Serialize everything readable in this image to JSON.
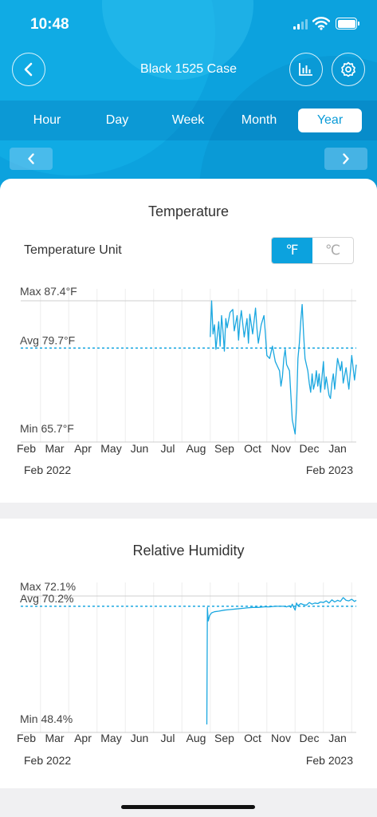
{
  "status_bar": {
    "time": "10:48"
  },
  "header": {
    "title": "Black 1525 Case"
  },
  "tabs": [
    {
      "label": "Hour",
      "active": false
    },
    {
      "label": "Day",
      "active": false
    },
    {
      "label": "Week",
      "active": false
    },
    {
      "label": "Month",
      "active": false
    },
    {
      "label": "Year",
      "active": true
    }
  ],
  "temperature": {
    "title": "Temperature",
    "unit_label": "Temperature Unit",
    "unit_fahrenheit": "℉",
    "unit_celsius": "℃",
    "selected_unit": "F",
    "year_start": "Feb 2022",
    "year_end": "Feb 2023"
  },
  "humidity": {
    "title": "Relative Humidity",
    "year_start": "Feb 2022",
    "year_end": "Feb 2023"
  },
  "colors": {
    "accent": "#0ca2de",
    "line": "#1aa7e0"
  },
  "chart_data": [
    {
      "type": "line",
      "title": "Temperature",
      "max_label": "Max 87.4°F",
      "avg_label": "Avg 79.7°F",
      "min_label": "Min 65.7°F",
      "max": 87.4,
      "avg": 79.7,
      "min": 65.7,
      "ylim": [
        65.7,
        87.4
      ],
      "months": [
        "Feb",
        "Mar",
        "Apr",
        "May",
        "Jun",
        "Jul",
        "Aug",
        "Sep",
        "Oct",
        "Nov",
        "Dec",
        "Jan"
      ],
      "series": [
        {
          "x": [
            6.5,
            6.55,
            6.6,
            6.65,
            6.7,
            6.8,
            6.85,
            6.9,
            6.95,
            7.0,
            7.05,
            7.1,
            7.2,
            7.3,
            7.35,
            7.45,
            7.5,
            7.55,
            7.6,
            7.7,
            7.8,
            7.85,
            7.9,
            8.0,
            8.1,
            8.15,
            8.2,
            8.3,
            8.4,
            8.45,
            8.5,
            8.6,
            8.7,
            8.8,
            8.9,
            8.95,
            9.0,
            9.05,
            9.1,
            9.15,
            9.2,
            9.3,
            9.4,
            9.5,
            9.55,
            9.6,
            9.65,
            9.7,
            9.75,
            9.8,
            9.85,
            9.9,
            9.95,
            10.0,
            10.05,
            10.1,
            10.15,
            10.2,
            10.25,
            10.3,
            10.35,
            10.4,
            10.5,
            10.55,
            10.6,
            10.7,
            10.75,
            10.8,
            10.85,
            10.9,
            11.0,
            11.1,
            11.15,
            11.2,
            11.3,
            11.4,
            11.5,
            11.6,
            11.7
          ],
          "y": [
            81.5,
            87.4,
            82.0,
            83.5,
            79.5,
            84.0,
            80.0,
            85.0,
            82.5,
            79.2,
            84.5,
            83.0,
            85.5,
            86.0,
            82.5,
            85.0,
            81.0,
            84.0,
            85.8,
            81.5,
            84.5,
            80.5,
            85.2,
            82.0,
            86.2,
            83.0,
            80.5,
            83.5,
            85.0,
            82.0,
            78.5,
            78.0,
            80.0,
            77.5,
            76.5,
            76.0,
            73.5,
            75.0,
            78.0,
            79.5,
            77.0,
            76.0,
            68.0,
            65.7,
            70.0,
            78.0,
            80.5,
            84.0,
            86.8,
            82.0,
            78.0,
            77.0,
            76.0,
            74.0,
            72.5,
            75.5,
            73.0,
            74.0,
            76.0,
            73.5,
            75.5,
            72.5,
            77.5,
            73.0,
            75.0,
            72.0,
            71.5,
            74.0,
            75.5,
            73.0,
            78.0,
            76.0,
            77.5,
            74.0,
            76.5,
            73.0,
            78.5,
            74.5,
            77.0
          ]
        }
      ]
    },
    {
      "type": "line",
      "title": "Relative Humidity",
      "max_label": "Max 72.1%",
      "avg_label": "Avg 70.2%",
      "min_label": "Min 48.4%",
      "max": 72.1,
      "avg": 70.2,
      "min": 48.4,
      "ylim": [
        48.4,
        72.1
      ],
      "months": [
        "Feb",
        "Mar",
        "Apr",
        "May",
        "Jun",
        "Jul",
        "Aug",
        "Sep",
        "Oct",
        "Nov",
        "Dec",
        "Jan"
      ],
      "series": [
        {
          "x": [
            6.38,
            6.4,
            6.43,
            6.48,
            6.55,
            6.65,
            6.8,
            7.0,
            7.2,
            7.4,
            7.6,
            7.8,
            8.0,
            8.2,
            8.4,
            8.6,
            8.8,
            9.0,
            9.1,
            9.2,
            9.3,
            9.35,
            9.4,
            9.45,
            9.5,
            9.55,
            9.6,
            9.7,
            9.8,
            9.9,
            10.0,
            10.1,
            10.2,
            10.3,
            10.4,
            10.5,
            10.6,
            10.7,
            10.8,
            10.9,
            11.0,
            11.1,
            11.2,
            11.3,
            11.4,
            11.5,
            11.6,
            11.7
          ],
          "y": [
            48.4,
            70.0,
            67.5,
            68.5,
            69.0,
            69.2,
            69.3,
            69.5,
            69.6,
            69.7,
            69.8,
            69.9,
            70.0,
            70.0,
            70.1,
            70.1,
            70.2,
            70.2,
            70.2,
            70.1,
            70.3,
            70.0,
            70.6,
            70.0,
            69.5,
            70.8,
            70.3,
            70.7,
            70.5,
            70.4,
            70.9,
            70.6,
            70.8,
            70.7,
            71.0,
            70.9,
            71.2,
            70.8,
            71.4,
            71.0,
            71.3,
            71.1,
            71.8,
            71.3,
            71.2,
            71.5,
            71.1,
            71.3
          ]
        }
      ]
    }
  ]
}
